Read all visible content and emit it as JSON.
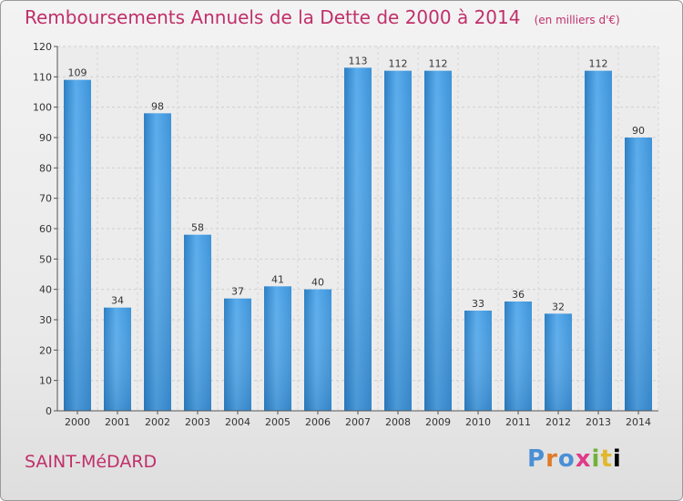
{
  "title": "Remboursements Annuels de la Dette de 2000 à 2014",
  "subtitle": "(en milliers d'€)",
  "commune": "SAINT-MéDARD",
  "logo": "Proxiti",
  "colors": {
    "title": "#c0306a",
    "bar_light": "#5aacec",
    "bar_dark": "#2c7fc4"
  },
  "chart_data": {
    "type": "bar",
    "categories": [
      "2000",
      "2001",
      "2002",
      "2003",
      "2004",
      "2005",
      "2006",
      "2007",
      "2008",
      "2009",
      "2010",
      "2011",
      "2012",
      "2013",
      "2014"
    ],
    "values": [
      109,
      34,
      98,
      58,
      37,
      41,
      40,
      113,
      112,
      112,
      33,
      36,
      32,
      112,
      90
    ],
    "ylim": [
      0,
      120
    ],
    "yticks": [
      0,
      10,
      20,
      30,
      40,
      50,
      60,
      70,
      80,
      90,
      100,
      110,
      120
    ],
    "grid": true
  }
}
